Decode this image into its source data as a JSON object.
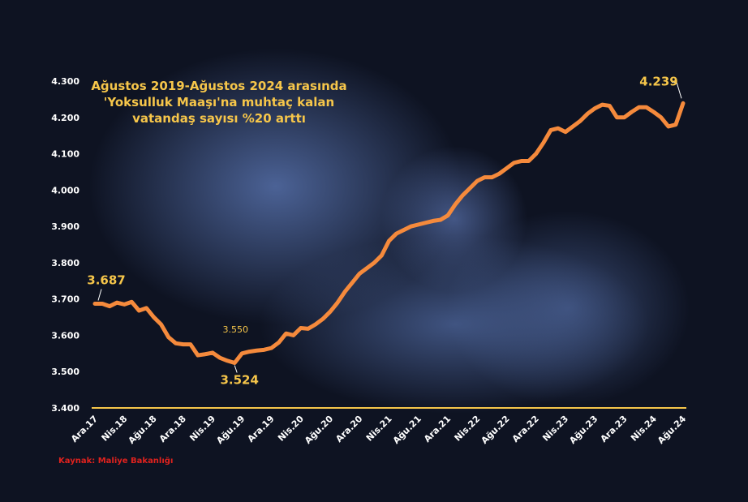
{
  "chart_data": {
    "type": "line",
    "title": "Ağustos 2019-Ağustos 2024 arasında\n'Yoksulluk Maaşı'na muhtaç kalan\nvatandaş sayısı %20 arttı",
    "source": "Kaynak: Maliye Bakanlığı",
    "categories": [
      "Ara.17",
      null,
      null,
      null,
      "Nis.18",
      null,
      null,
      null,
      "Ağu.18",
      null,
      null,
      null,
      "Ara.18",
      null,
      null,
      null,
      "Nis.19",
      null,
      null,
      null,
      "Ağu.19",
      null,
      null,
      null,
      "Ara.19",
      null,
      null,
      null,
      "Nis.20",
      null,
      null,
      null,
      "Ağu.20",
      null,
      null,
      null,
      "Ara.20",
      null,
      null,
      null,
      "Nis.21",
      null,
      null,
      null,
      "Ağu.21",
      null,
      null,
      null,
      "Ara.21",
      null,
      null,
      null,
      "Nis.22",
      null,
      null,
      null,
      "Ağu.22",
      null,
      null,
      null,
      "Ara.22",
      null,
      null,
      null,
      "Nis.23",
      null,
      null,
      null,
      "Ağu.23",
      null,
      null,
      null,
      "Ara.23",
      null,
      null,
      null,
      "Nis.24",
      null,
      null,
      null,
      "Ağu.24"
    ],
    "values": [
      3687,
      3687,
      3680,
      3690,
      3685,
      3692,
      3668,
      3675,
      3650,
      3630,
      3595,
      3578,
      3575,
      3575,
      3545,
      3548,
      3552,
      3538,
      3530,
      3524,
      3550,
      3555,
      3558,
      3560,
      3565,
      3580,
      3605,
      3600,
      3620,
      3618,
      3630,
      3645,
      3665,
      3690,
      3720,
      3745,
      3770,
      3785,
      3800,
      3820,
      3860,
      3880,
      3890,
      3900,
      3905,
      3910,
      3915,
      3918,
      3930,
      3960,
      3985,
      4005,
      4025,
      4035,
      4035,
      4045,
      4060,
      4075,
      4080,
      4080,
      4100,
      4130,
      4165,
      4170,
      4160,
      4175,
      4190,
      4210,
      4225,
      4235,
      4232,
      4200,
      4200,
      4215,
      4228,
      4228,
      4215,
      4200,
      4175,
      4180,
      4239
    ],
    "value_labels": [
      "3.687",
      null,
      null,
      null,
      null,
      null,
      null,
      null,
      null,
      null,
      null,
      null,
      null,
      null,
      null,
      null,
      null,
      null,
      null,
      "3.524",
      "3.550",
      null,
      null,
      null,
      null,
      null,
      null,
      null,
      null,
      null,
      null,
      null,
      null,
      null,
      null,
      null,
      null,
      null,
      null,
      null,
      null,
      null,
      null,
      null,
      null,
      null,
      null,
      null,
      null,
      null,
      null,
      null,
      null,
      null,
      null,
      null,
      null,
      null,
      null,
      null,
      null,
      null,
      null,
      null,
      null,
      null,
      null,
      null,
      null,
      null,
      null,
      null,
      null,
      null,
      null,
      null,
      null,
      null,
      null,
      null,
      "4.239"
    ],
    "color": "#f58a3c",
    "ylim": [
      3400,
      4300
    ],
    "yticks": [
      {
        "value": 3400,
        "label": "3.400"
      },
      {
        "value": 3500,
        "label": "3.500"
      },
      {
        "value": 3600,
        "label": "3.600"
      },
      {
        "value": 3700,
        "label": "3.700"
      },
      {
        "value": 3800,
        "label": "3.800"
      },
      {
        "value": 3900,
        "label": "3.900"
      },
      {
        "value": 4000,
        "label": "4.000"
      },
      {
        "value": 4100,
        "label": "4.100"
      },
      {
        "value": 4200,
        "label": "4.200"
      },
      {
        "value": 4300,
        "label": "4.300"
      }
    ],
    "grid": false
  }
}
